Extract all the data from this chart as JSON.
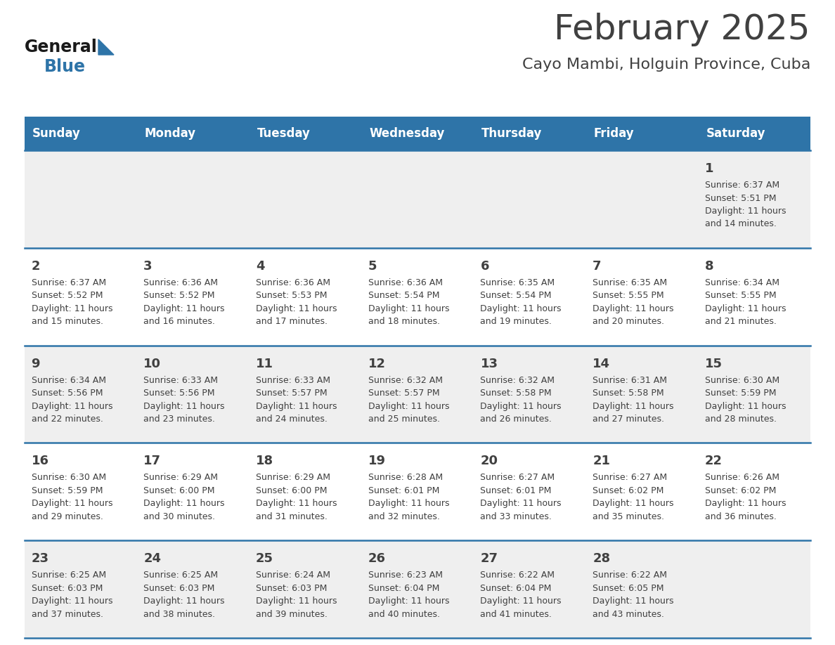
{
  "title": "February 2025",
  "subtitle": "Cayo Mambi, Holguin Province, Cuba",
  "header_bg": "#2E74A8",
  "header_text": "#FFFFFF",
  "day_names": [
    "Sunday",
    "Monday",
    "Tuesday",
    "Wednesday",
    "Thursday",
    "Friday",
    "Saturday"
  ],
  "row_bg_odd": "#EFEFEF",
  "row_bg_even": "#FFFFFF",
  "separator_color": "#2E74A8",
  "text_color": "#404040",
  "days": [
    {
      "day": 1,
      "col": 6,
      "row": 0,
      "sunrise": "6:37 AM",
      "sunset": "5:51 PM",
      "daylight": "11 hours and 14 minutes."
    },
    {
      "day": 2,
      "col": 0,
      "row": 1,
      "sunrise": "6:37 AM",
      "sunset": "5:52 PM",
      "daylight": "11 hours and 15 minutes."
    },
    {
      "day": 3,
      "col": 1,
      "row": 1,
      "sunrise": "6:36 AM",
      "sunset": "5:52 PM",
      "daylight": "11 hours and 16 minutes."
    },
    {
      "day": 4,
      "col": 2,
      "row": 1,
      "sunrise": "6:36 AM",
      "sunset": "5:53 PM",
      "daylight": "11 hours and 17 minutes."
    },
    {
      "day": 5,
      "col": 3,
      "row": 1,
      "sunrise": "6:36 AM",
      "sunset": "5:54 PM",
      "daylight": "11 hours and 18 minutes."
    },
    {
      "day": 6,
      "col": 4,
      "row": 1,
      "sunrise": "6:35 AM",
      "sunset": "5:54 PM",
      "daylight": "11 hours and 19 minutes."
    },
    {
      "day": 7,
      "col": 5,
      "row": 1,
      "sunrise": "6:35 AM",
      "sunset": "5:55 PM",
      "daylight": "11 hours and 20 minutes."
    },
    {
      "day": 8,
      "col": 6,
      "row": 1,
      "sunrise": "6:34 AM",
      "sunset": "5:55 PM",
      "daylight": "11 hours and 21 minutes."
    },
    {
      "day": 9,
      "col": 0,
      "row": 2,
      "sunrise": "6:34 AM",
      "sunset": "5:56 PM",
      "daylight": "11 hours and 22 minutes."
    },
    {
      "day": 10,
      "col": 1,
      "row": 2,
      "sunrise": "6:33 AM",
      "sunset": "5:56 PM",
      "daylight": "11 hours and 23 minutes."
    },
    {
      "day": 11,
      "col": 2,
      "row": 2,
      "sunrise": "6:33 AM",
      "sunset": "5:57 PM",
      "daylight": "11 hours and 24 minutes."
    },
    {
      "day": 12,
      "col": 3,
      "row": 2,
      "sunrise": "6:32 AM",
      "sunset": "5:57 PM",
      "daylight": "11 hours and 25 minutes."
    },
    {
      "day": 13,
      "col": 4,
      "row": 2,
      "sunrise": "6:32 AM",
      "sunset": "5:58 PM",
      "daylight": "11 hours and 26 minutes."
    },
    {
      "day": 14,
      "col": 5,
      "row": 2,
      "sunrise": "6:31 AM",
      "sunset": "5:58 PM",
      "daylight": "11 hours and 27 minutes."
    },
    {
      "day": 15,
      "col": 6,
      "row": 2,
      "sunrise": "6:30 AM",
      "sunset": "5:59 PM",
      "daylight": "11 hours and 28 minutes."
    },
    {
      "day": 16,
      "col": 0,
      "row": 3,
      "sunrise": "6:30 AM",
      "sunset": "5:59 PM",
      "daylight": "11 hours and 29 minutes."
    },
    {
      "day": 17,
      "col": 1,
      "row": 3,
      "sunrise": "6:29 AM",
      "sunset": "6:00 PM",
      "daylight": "11 hours and 30 minutes."
    },
    {
      "day": 18,
      "col": 2,
      "row": 3,
      "sunrise": "6:29 AM",
      "sunset": "6:00 PM",
      "daylight": "11 hours and 31 minutes."
    },
    {
      "day": 19,
      "col": 3,
      "row": 3,
      "sunrise": "6:28 AM",
      "sunset": "6:01 PM",
      "daylight": "11 hours and 32 minutes."
    },
    {
      "day": 20,
      "col": 4,
      "row": 3,
      "sunrise": "6:27 AM",
      "sunset": "6:01 PM",
      "daylight": "11 hours and 33 minutes."
    },
    {
      "day": 21,
      "col": 5,
      "row": 3,
      "sunrise": "6:27 AM",
      "sunset": "6:02 PM",
      "daylight": "11 hours and 35 minutes."
    },
    {
      "day": 22,
      "col": 6,
      "row": 3,
      "sunrise": "6:26 AM",
      "sunset": "6:02 PM",
      "daylight": "11 hours and 36 minutes."
    },
    {
      "day": 23,
      "col": 0,
      "row": 4,
      "sunrise": "6:25 AM",
      "sunset": "6:03 PM",
      "daylight": "11 hours and 37 minutes."
    },
    {
      "day": 24,
      "col": 1,
      "row": 4,
      "sunrise": "6:25 AM",
      "sunset": "6:03 PM",
      "daylight": "11 hours and 38 minutes."
    },
    {
      "day": 25,
      "col": 2,
      "row": 4,
      "sunrise": "6:24 AM",
      "sunset": "6:03 PM",
      "daylight": "11 hours and 39 minutes."
    },
    {
      "day": 26,
      "col": 3,
      "row": 4,
      "sunrise": "6:23 AM",
      "sunset": "6:04 PM",
      "daylight": "11 hours and 40 minutes."
    },
    {
      "day": 27,
      "col": 4,
      "row": 4,
      "sunrise": "6:22 AM",
      "sunset": "6:04 PM",
      "daylight": "11 hours and 41 minutes."
    },
    {
      "day": 28,
      "col": 5,
      "row": 4,
      "sunrise": "6:22 AM",
      "sunset": "6:05 PM",
      "daylight": "11 hours and 43 minutes."
    }
  ],
  "logo_text_general": "General",
  "logo_text_blue": "Blue",
  "logo_color_general": "#1a1a1a",
  "logo_color_blue": "#2E74A8",
  "logo_triangle_color": "#2E74A8",
  "title_fontsize": 36,
  "subtitle_fontsize": 16,
  "header_fontsize": 12,
  "daynum_fontsize": 13,
  "info_fontsize": 9
}
